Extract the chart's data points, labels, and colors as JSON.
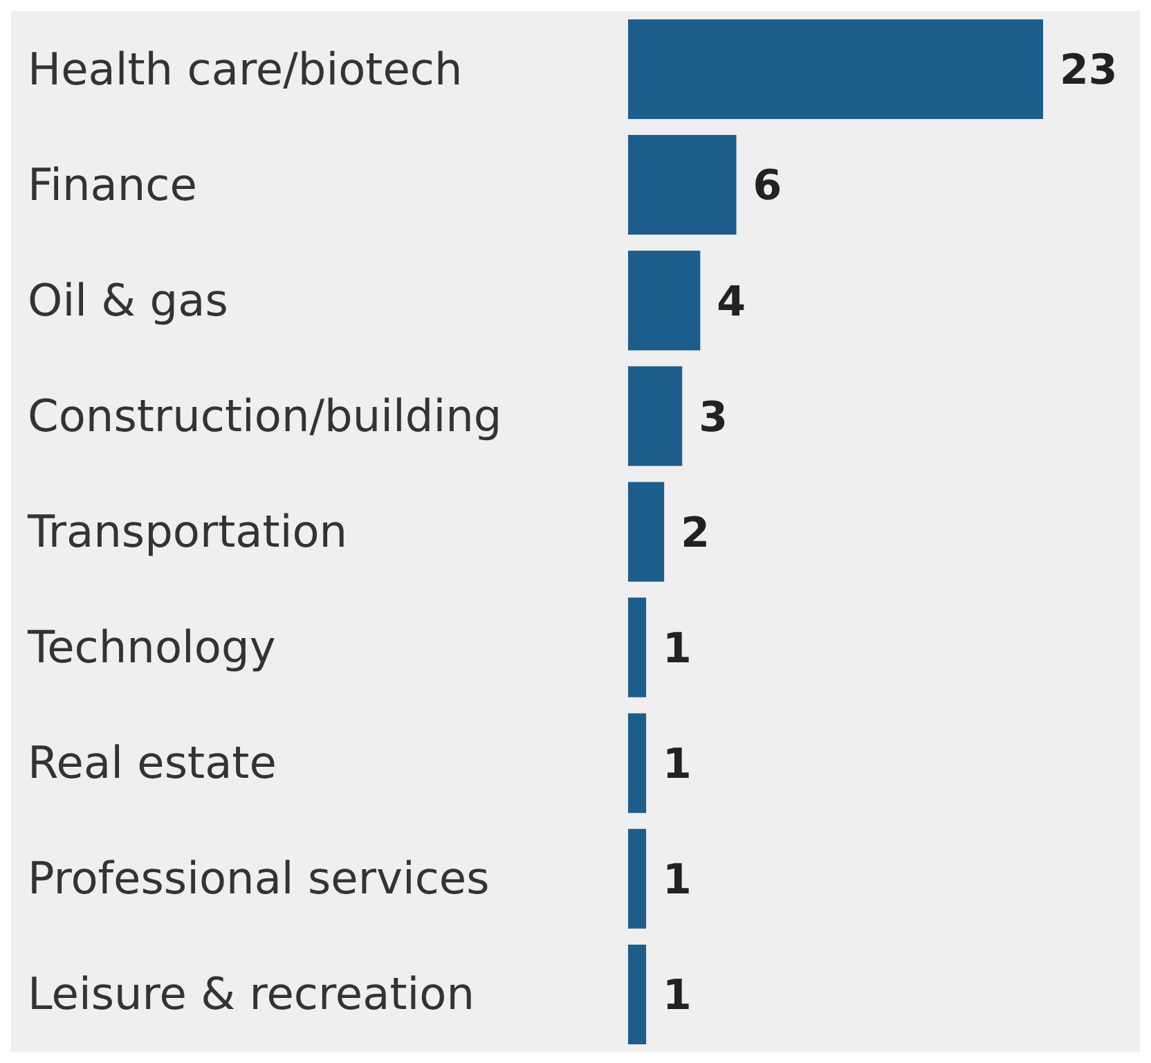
{
  "chart_data": {
    "type": "bar",
    "orientation": "horizontal",
    "categories": [
      "Health care/biotech",
      "Finance",
      "Oil & gas",
      "Construction/building",
      "Transportation",
      "Technology",
      "Real estate",
      "Professional services",
      "Leisure & recreation"
    ],
    "values": [
      23,
      6,
      4,
      3,
      2,
      1,
      1,
      1,
      1
    ],
    "color": "#1d5d8c",
    "data_labels": true,
    "grid": false,
    "legend": false
  }
}
